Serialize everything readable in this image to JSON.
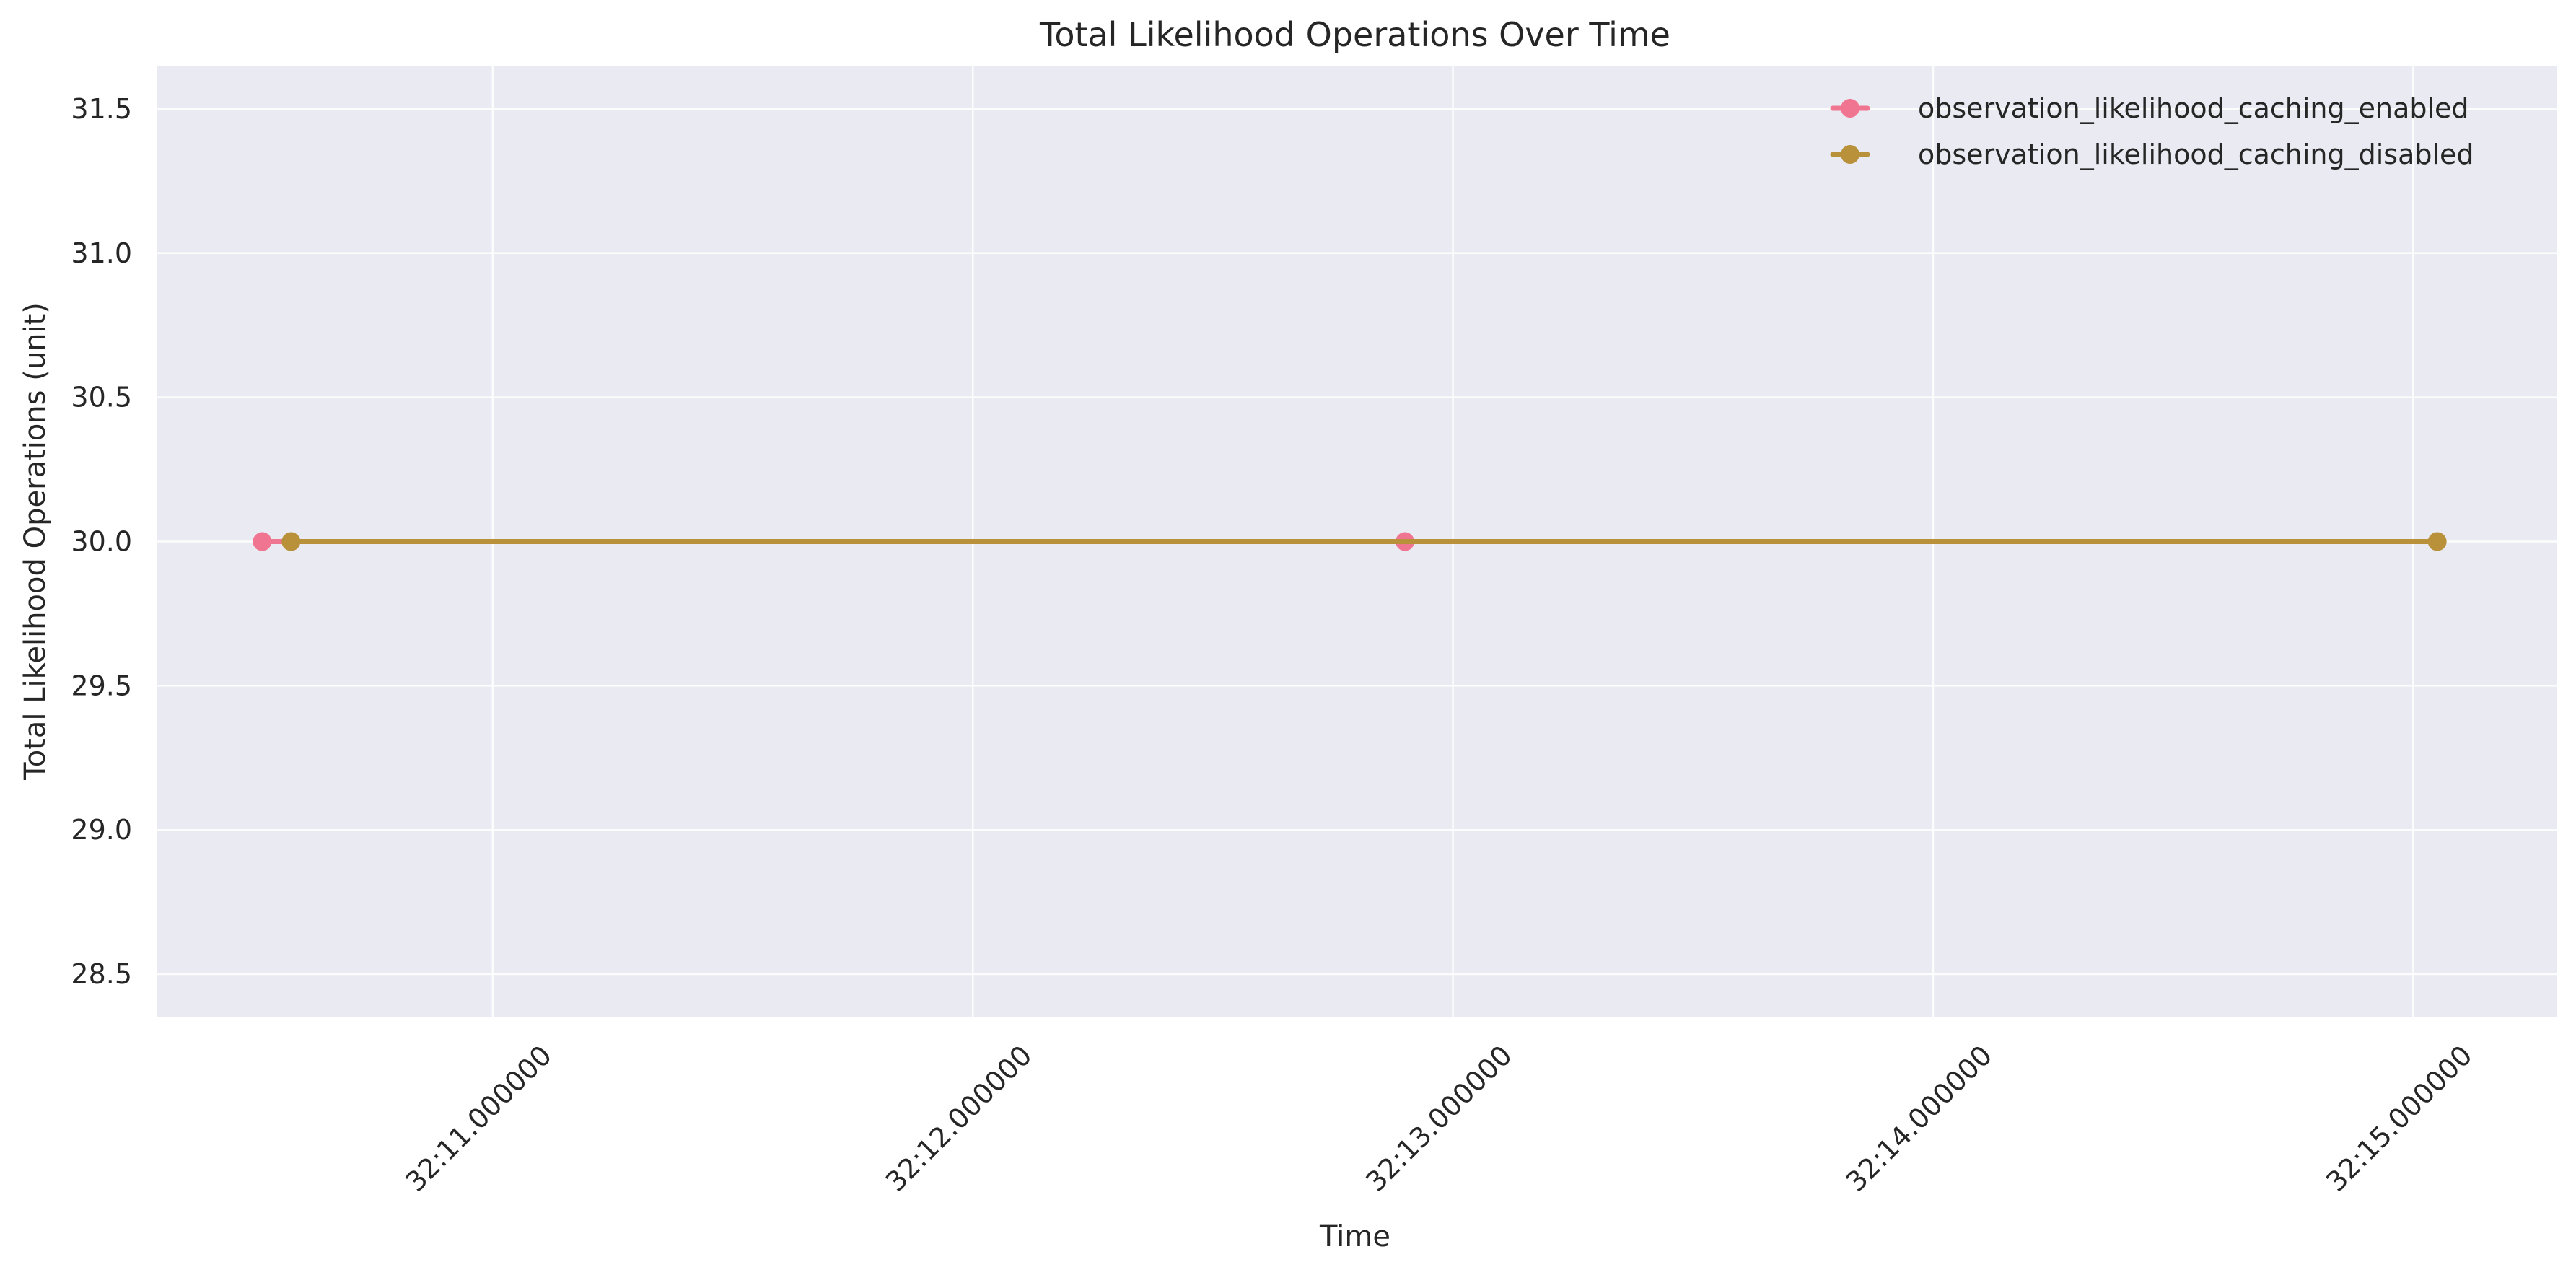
{
  "chart_data": {
    "type": "line",
    "title": "Total Likelihood Operations Over Time",
    "xlabel": "Time",
    "ylabel": "Total Likelihood Operations (unit)",
    "x_ticks": [
      {
        "value": 11.0,
        "label": "32:11.000000"
      },
      {
        "value": 12.0,
        "label": "32:12.000000"
      },
      {
        "value": 13.0,
        "label": "32:13.000000"
      },
      {
        "value": 14.0,
        "label": "32:14.000000"
      },
      {
        "value": 15.0,
        "label": "32:15.000000"
      }
    ],
    "y_ticks": [
      {
        "value": 28.5,
        "label": "28.5"
      },
      {
        "value": 29.0,
        "label": "29.0"
      },
      {
        "value": 29.5,
        "label": "29.5"
      },
      {
        "value": 30.0,
        "label": "30.0"
      },
      {
        "value": 30.5,
        "label": "30.5"
      },
      {
        "value": 31.0,
        "label": "31.0"
      },
      {
        "value": 31.5,
        "label": "31.5"
      }
    ],
    "xlim": [
      10.3,
      15.3
    ],
    "ylim": [
      28.35,
      31.65
    ],
    "grid": true,
    "legend_position": "top-right",
    "series": [
      {
        "name": "observation_likelihood_caching_enabled",
        "color": "#f07590",
        "points": [
          {
            "x": 10.52,
            "y": 30.0
          },
          {
            "x": 12.9,
            "y": 30.0
          }
        ]
      },
      {
        "name": "observation_likelihood_caching_disabled",
        "color": "#b8913a",
        "points": [
          {
            "x": 10.58,
            "y": 30.0
          },
          {
            "x": 15.05,
            "y": 30.0
          }
        ]
      }
    ]
  }
}
